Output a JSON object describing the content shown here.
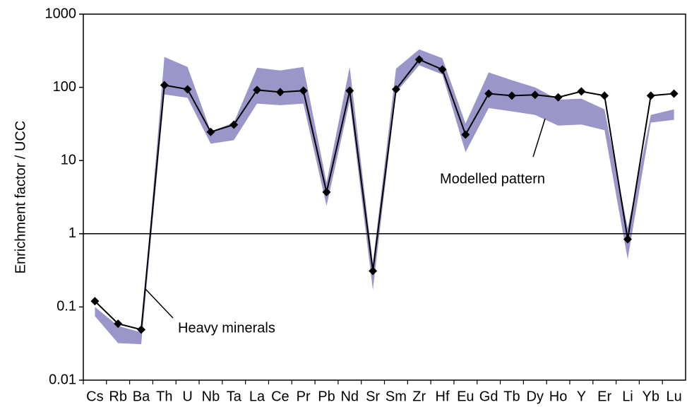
{
  "chart_data": {
    "type": "line",
    "y_label": "Enrichment factor / UCC",
    "log_y": true,
    "categories": [
      "Cs",
      "Rb",
      "Ba",
      "Th",
      "U",
      "Nb",
      "Ta",
      "La",
      "Ce",
      "Pr",
      "Pb",
      "Nd",
      "Sr",
      "Sm",
      "Zr",
      "Hf",
      "Eu",
      "Gd",
      "Tb",
      "Dy",
      "Ho",
      "Y",
      "Er",
      "Li",
      "Yb",
      "Lu"
    ],
    "series": [
      {
        "name": "Heavy minerals",
        "color": "#000000",
        "values": [
          0.12,
          0.059,
          0.049,
          107,
          94,
          24.6,
          30.9,
          92,
          86,
          90,
          3.7,
          90,
          0.31,
          94,
          240,
          175,
          22.6,
          82,
          77,
          79,
          73,
          88,
          77,
          0.84,
          77,
          82
        ]
      }
    ],
    "band": {
      "name": "Modelled pattern",
      "color": "#9b96c9",
      "low": [
        0.075,
        0.032,
        0.031,
        80,
        72,
        17,
        19,
        60,
        57,
        60,
        2.4,
        65,
        0.17,
        85,
        200,
        150,
        13,
        52,
        47,
        42,
        30,
        31,
        26,
        0.45,
        33,
        36
      ],
      "high": [
        0.1,
        0.055,
        0.045,
        260,
        190,
        25,
        33,
        185,
        170,
        190,
        5,
        190,
        0.4,
        180,
        330,
        250,
        32,
        160,
        125,
        100,
        68,
        70,
        50,
        1.2,
        42,
        50
      ]
    },
    "reference_line": 1,
    "ylim": [
      0.01,
      1000
    ],
    "yticks": [
      0.01,
      0.1,
      1,
      10,
      100,
      1000
    ]
  }
}
